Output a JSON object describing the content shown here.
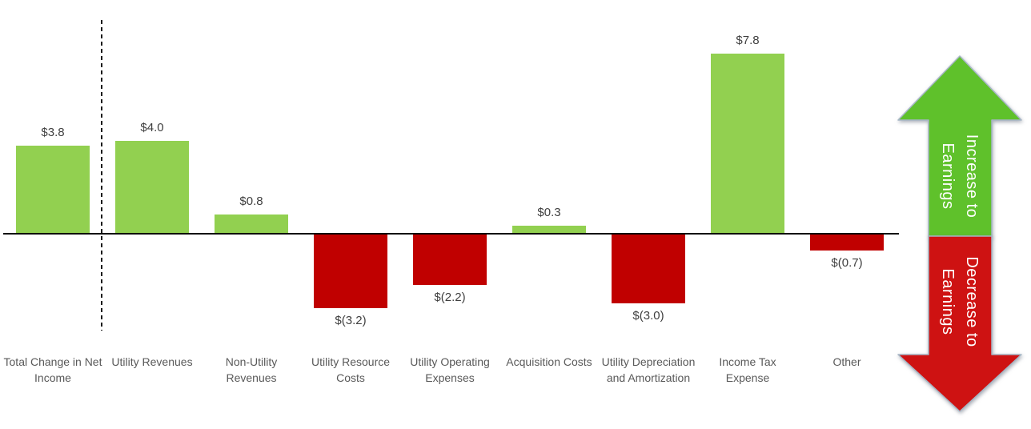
{
  "chart_data": {
    "type": "bar",
    "subtype": "waterfall-contribution-columns",
    "title": "",
    "xlabel": "",
    "ylabel": "",
    "categories": [
      "Total Change in Net Income",
      "Utility Revenues",
      "Non-Utility Revenues",
      "Utility Resource Costs",
      "Utility Operating Expenses",
      "Acquisition Costs",
      "Utility Depreciation and Amortization",
      "Income Tax Expense",
      "Other"
    ],
    "values": [
      3.8,
      4.0,
      0.8,
      -3.2,
      -2.2,
      0.3,
      -3.0,
      7.8,
      -0.7
    ],
    "value_labels": [
      "$3.8",
      "$4.0",
      "$0.8",
      "$(3.2)",
      "$(2.2)",
      "$0.3",
      "$(3.0)",
      "$7.8",
      "$(0.7)"
    ],
    "positive_color": "#92D050",
    "negative_color": "#C00000",
    "baseline_value": 0,
    "ylim": [
      -4.2,
      8.8
    ],
    "grid": false,
    "legend": false,
    "separator_after_category": "Total Change in Net Income"
  },
  "annotations": {
    "increase_arrow": {
      "direction": "up",
      "line1": "Increase to",
      "line2": "Earnings",
      "fill_color": "#5FC12B",
      "outline_color": "#A6B6C5",
      "text_color": "#FFFFFF"
    },
    "decrease_arrow": {
      "direction": "down",
      "line1": "Decrease to",
      "line2": "Earnings",
      "fill_color": "#CE1212",
      "outline_color": "#A6B6C5",
      "text_color": "#FFFFFF"
    }
  }
}
